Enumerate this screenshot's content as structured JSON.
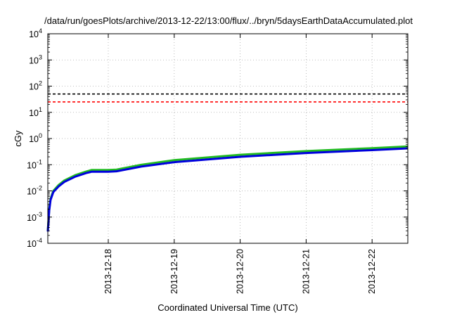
{
  "chart_data": {
    "type": "line",
    "title": "/data/run/goesPlots/archive/2013-12-22/13:00/flux/../bryn/5daysEarthDataAccumulated.plot",
    "xlabel": "Coordinated Universal Time (UTC)",
    "ylabel": "cGy",
    "yscale": "log",
    "ylim": [
      0.0001,
      10000
    ],
    "xlim": [
      "2013-12-17T02:00",
      "2013-12-22T13:00"
    ],
    "yticks": [
      {
        "base": "10",
        "exp": "-4",
        "value": 0.0001
      },
      {
        "base": "10",
        "exp": "-3",
        "value": 0.001
      },
      {
        "base": "10",
        "exp": "-2",
        "value": 0.01
      },
      {
        "base": "10",
        "exp": "-1",
        "value": 0.1
      },
      {
        "base": "10",
        "exp": "0",
        "value": 1
      },
      {
        "base": "10",
        "exp": "1",
        "value": 10
      },
      {
        "base": "10",
        "exp": "2",
        "value": 100
      },
      {
        "base": "10",
        "exp": "3",
        "value": 1000
      },
      {
        "base": "10",
        "exp": "4",
        "value": 10000
      }
    ],
    "xticks": [
      {
        "label": "2013-12-18",
        "value": "2013-12-18T00:00"
      },
      {
        "label": "2013-12-19",
        "value": "2013-12-19T00:00"
      },
      {
        "label": "2013-12-20",
        "value": "2013-12-20T00:00"
      },
      {
        "label": "2013-12-21",
        "value": "2013-12-21T00:00"
      },
      {
        "label": "2013-12-22",
        "value": "2013-12-22T00:00"
      }
    ],
    "grid": true,
    "hlines": [
      {
        "y": 50,
        "color": "#000000",
        "style": "dashed"
      },
      {
        "y": 25,
        "color": "#ff0000",
        "style": "dashed"
      }
    ],
    "series": [
      {
        "color": "#22bb22",
        "x": [
          "2013-12-17T02:00",
          "2013-12-17T02:30",
          "2013-12-17T03:00",
          "2013-12-17T04:00",
          "2013-12-17T06:00",
          "2013-12-17T08:00",
          "2013-12-17T12:00",
          "2013-12-17T16:00",
          "2013-12-17T18:00",
          "2013-12-18T00:00",
          "2013-12-18T03:00",
          "2013-12-18T12:00",
          "2013-12-19T00:00",
          "2013-12-20T00:00",
          "2013-12-21T00:00",
          "2013-12-22T00:00",
          "2013-12-22T13:00"
        ],
        "y": [
          0.0003,
          0.002,
          0.005,
          0.01,
          0.017,
          0.025,
          0.04,
          0.055,
          0.063,
          0.063,
          0.065,
          0.1,
          0.15,
          0.24,
          0.33,
          0.43,
          0.5
        ]
      },
      {
        "color": "#0000dd",
        "x": [
          "2013-12-17T02:00",
          "2013-12-17T02:30",
          "2013-12-17T03:00",
          "2013-12-17T04:00",
          "2013-12-17T06:00",
          "2013-12-17T08:00",
          "2013-12-17T12:00",
          "2013-12-17T16:00",
          "2013-12-17T18:00",
          "2013-12-18T00:00",
          "2013-12-18T03:00",
          "2013-12-18T12:00",
          "2013-12-19T00:00",
          "2013-12-20T00:00",
          "2013-12-21T00:00",
          "2013-12-22T00:00",
          "2013-12-22T13:00"
        ],
        "y": [
          0.00028,
          0.0018,
          0.0045,
          0.009,
          0.015,
          0.022,
          0.035,
          0.048,
          0.054,
          0.054,
          0.056,
          0.085,
          0.125,
          0.2,
          0.28,
          0.36,
          0.42
        ]
      }
    ]
  }
}
